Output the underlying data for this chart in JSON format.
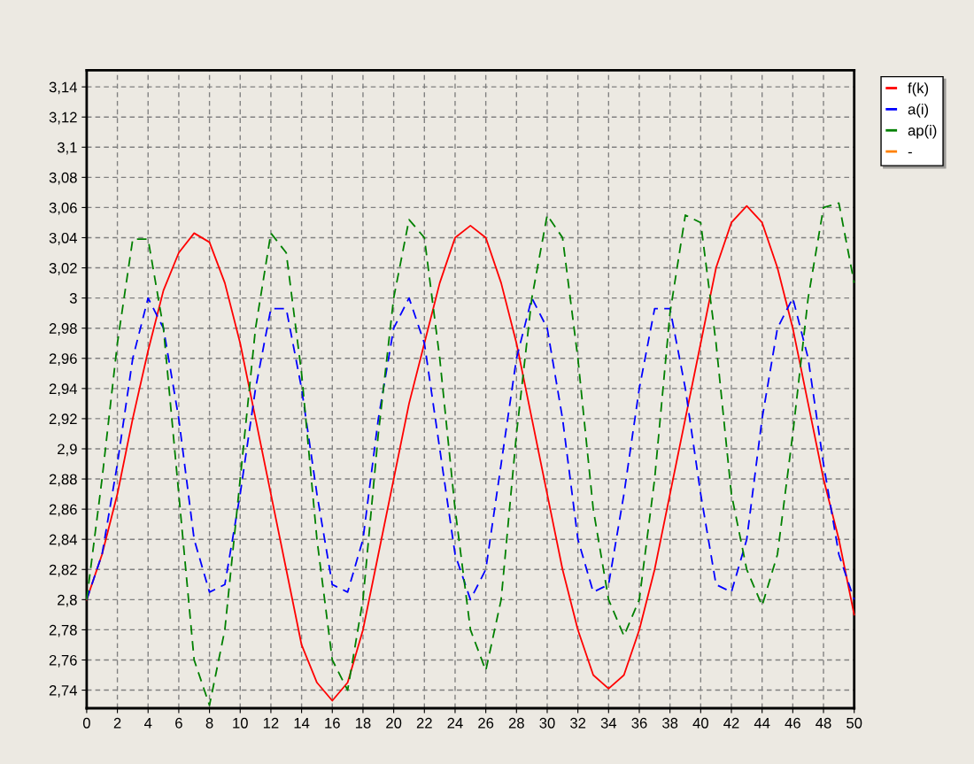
{
  "chart_data": {
    "type": "line",
    "x": [
      0,
      1,
      2,
      3,
      4,
      5,
      6,
      7,
      8,
      9,
      10,
      11,
      12,
      13,
      14,
      15,
      16,
      17,
      18,
      19,
      20,
      21,
      22,
      23,
      24,
      25,
      26,
      27,
      28,
      29,
      30,
      31,
      32,
      33,
      34,
      35,
      36,
      37,
      38,
      39,
      40,
      41,
      42,
      43,
      44,
      45,
      46,
      47,
      48,
      49,
      50
    ],
    "series": [
      {
        "name": "f(k)",
        "color": "#ff0000",
        "line_style": "solid",
        "values": [
          2.8,
          2.83,
          2.87,
          2.92,
          2.965,
          3.005,
          3.03,
          3.043,
          3.037,
          3.01,
          2.97,
          2.92,
          2.87,
          2.82,
          2.77,
          2.745,
          2.733,
          2.745,
          2.78,
          2.83,
          2.88,
          2.93,
          2.97,
          3.01,
          3.04,
          3.048,
          3.04,
          3.01,
          2.97,
          2.92,
          2.87,
          2.82,
          2.78,
          2.75,
          2.741,
          2.75,
          2.78,
          2.82,
          2.87,
          2.92,
          2.97,
          3.02,
          3.05,
          3.061,
          3.05,
          3.02,
          2.98,
          2.93,
          2.88,
          2.84,
          2.79
        ]
      },
      {
        "name": "a(i)",
        "color": "#0000ff",
        "line_style": "dashed",
        "values": [
          2.8,
          2.83,
          2.89,
          2.96,
          3.0,
          2.98,
          2.92,
          2.84,
          2.805,
          2.81,
          2.87,
          2.94,
          2.993,
          2.993,
          2.94,
          2.87,
          2.81,
          2.805,
          2.84,
          2.92,
          2.98,
          3.0,
          2.97,
          2.9,
          2.83,
          2.8,
          2.82,
          2.89,
          2.96,
          3.0,
          2.98,
          2.92,
          2.84,
          2.805,
          2.81,
          2.87,
          2.94,
          2.993,
          2.993,
          2.94,
          2.87,
          2.81,
          2.805,
          2.84,
          2.92,
          2.98,
          3.0,
          2.96,
          2.89,
          2.83,
          2.8
        ]
      },
      {
        "name": "ap(i)",
        "color": "#008000",
        "line_style": "dashed",
        "values": [
          2.8,
          2.88,
          2.97,
          3.039,
          3.039,
          2.98,
          2.87,
          2.76,
          2.73,
          2.78,
          2.88,
          2.98,
          3.043,
          3.03,
          2.95,
          2.84,
          2.76,
          2.74,
          2.8,
          2.91,
          3.0,
          3.052,
          3.04,
          2.96,
          2.86,
          2.78,
          2.753,
          2.8,
          2.91,
          3.0,
          3.055,
          3.04,
          2.96,
          2.86,
          2.8,
          2.776,
          2.8,
          2.88,
          2.99,
          3.055,
          3.05,
          2.97,
          2.87,
          2.82,
          2.796,
          2.83,
          2.91,
          3.0,
          3.06,
          3.063,
          3.01
        ]
      },
      {
        "name": "-",
        "color": "#ff8000",
        "line_style": "solid",
        "values": [
          null,
          null,
          null,
          null,
          null,
          null,
          null,
          null,
          null,
          null,
          null,
          null,
          null,
          null,
          null,
          null,
          null,
          null,
          null,
          null,
          null,
          null,
          null,
          null,
          null,
          null,
          null,
          null,
          null,
          null,
          null,
          null,
          null,
          null,
          null,
          null,
          null,
          null,
          null,
          null,
          null,
          null,
          null,
          null,
          null,
          null,
          null,
          null,
          null,
          null,
          null
        ]
      }
    ],
    "xlim": [
      0,
      50
    ],
    "xticks": [
      0,
      2,
      4,
      6,
      8,
      10,
      12,
      14,
      16,
      18,
      20,
      22,
      24,
      26,
      28,
      30,
      32,
      34,
      36,
      38,
      40,
      42,
      44,
      46,
      48,
      50
    ],
    "ylim": [
      2.728,
      3.151
    ],
    "yticks": [
      {
        "value": 2.74,
        "label": "2,74"
      },
      {
        "value": 2.76,
        "label": "2,76"
      },
      {
        "value": 2.78,
        "label": "2,78"
      },
      {
        "value": 2.8,
        "label": "2,8"
      },
      {
        "value": 2.82,
        "label": "2,82"
      },
      {
        "value": 2.84,
        "label": "2,84"
      },
      {
        "value": 2.86,
        "label": "2,86"
      },
      {
        "value": 2.88,
        "label": "2,88"
      },
      {
        "value": 2.9,
        "label": "2,9"
      },
      {
        "value": 2.92,
        "label": "2,92"
      },
      {
        "value": 2.94,
        "label": "2,94"
      },
      {
        "value": 2.96,
        "label": "2,96"
      },
      {
        "value": 2.98,
        "label": "2,98"
      },
      {
        "value": 3.0,
        "label": "3"
      },
      {
        "value": 3.02,
        "label": "3,02"
      },
      {
        "value": 3.04,
        "label": "3,04"
      },
      {
        "value": 3.06,
        "label": "3,06"
      },
      {
        "value": 3.08,
        "label": "3,08"
      },
      {
        "value": 3.1,
        "label": "3,1"
      },
      {
        "value": 3.12,
        "label": "3,12"
      },
      {
        "value": 3.14,
        "label": "3,14"
      }
    ],
    "grid": true,
    "legend": "top right",
    "marker": "none"
  }
}
